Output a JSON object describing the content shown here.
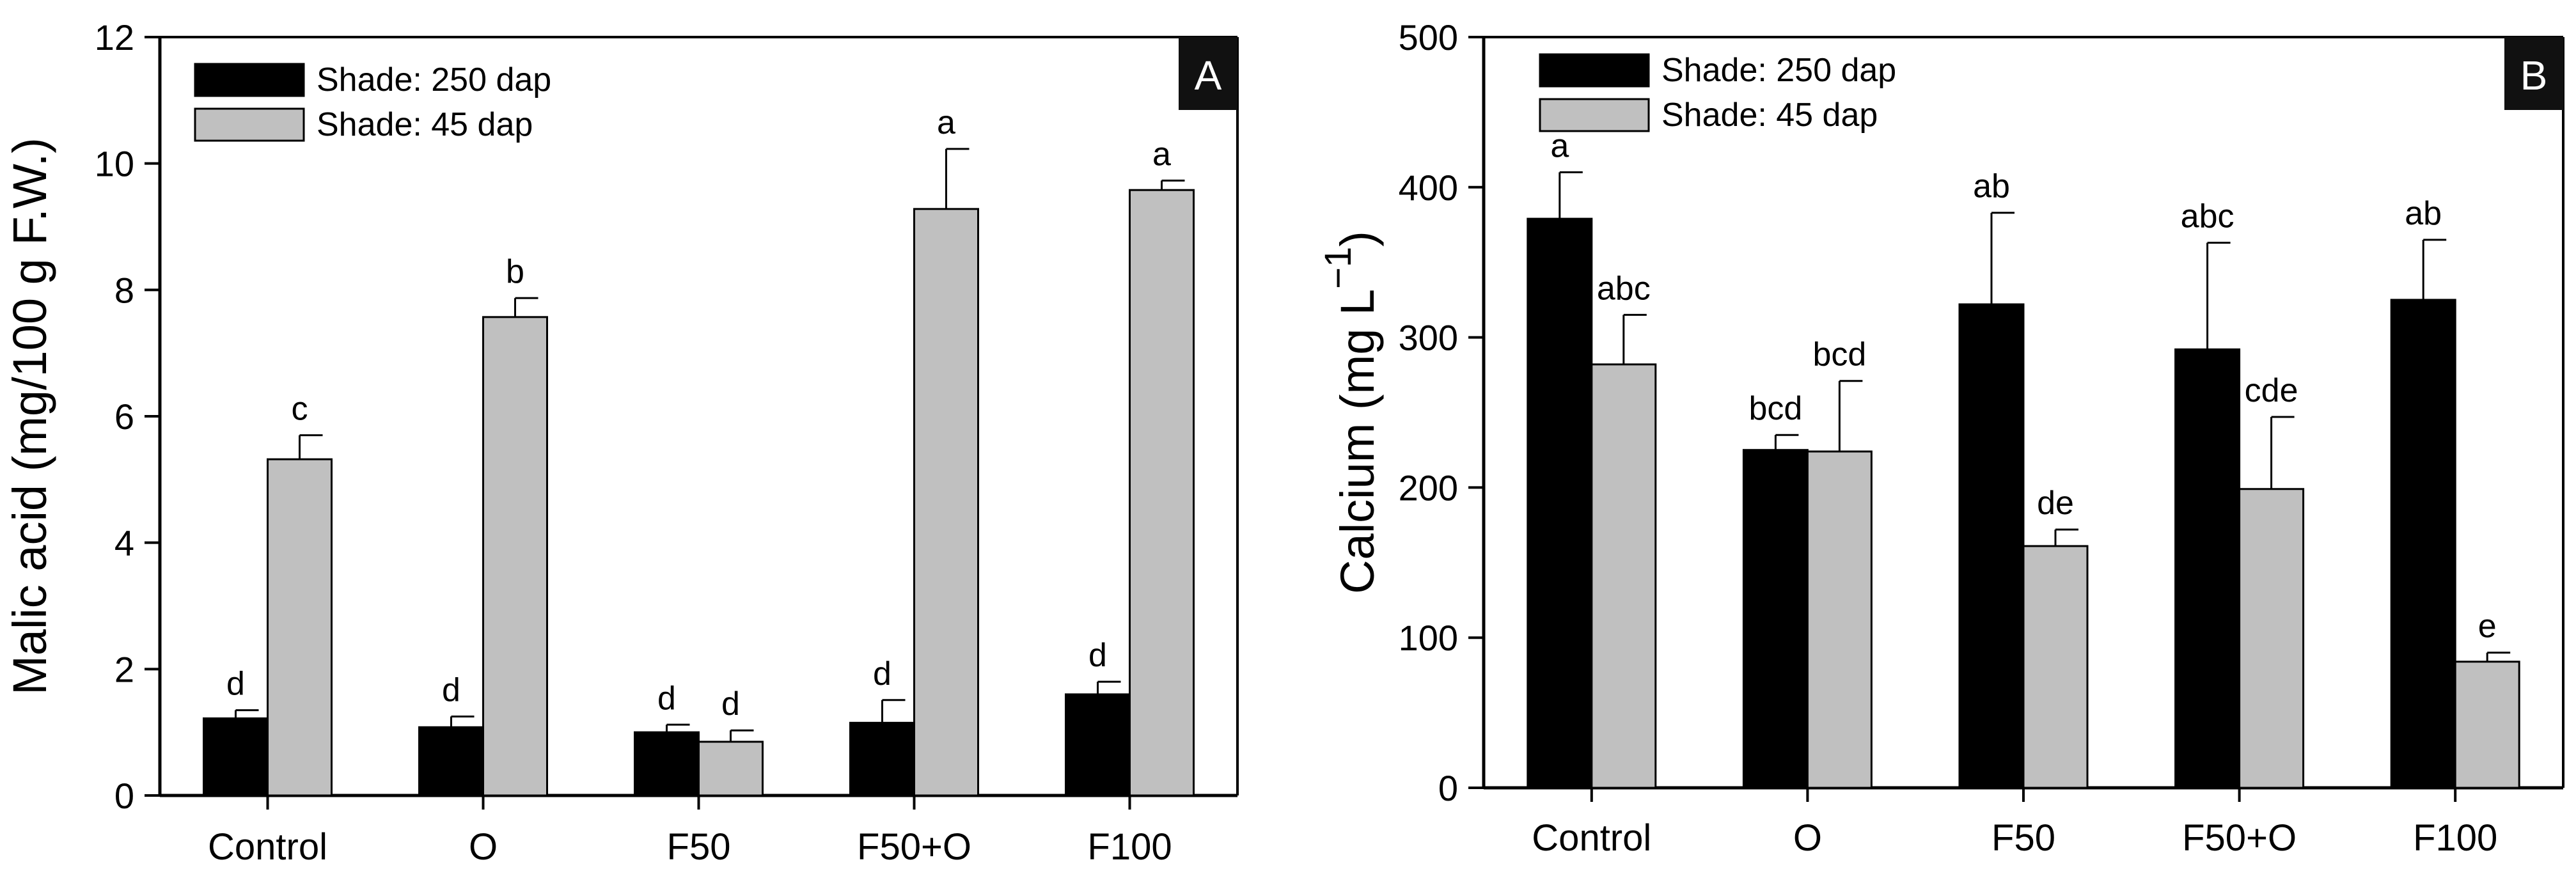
{
  "colors": {
    "series_250": "#000000",
    "series_45": "#c0c0c0",
    "axis": "#000000",
    "badge_bg": "#111111",
    "badge_text": "#ffffff"
  },
  "chart_data": [
    {
      "type": "bar",
      "panel_label": "A",
      "ylabel": "Malic acid (mg/100 g F.W.)",
      "xlabel": "",
      "ylim": [
        0,
        12
      ],
      "yticks": [
        "0",
        "2",
        "4",
        "6",
        "8",
        "10",
        "12"
      ],
      "categories": [
        "Control",
        "O",
        "F50",
        "F50+O",
        "F100"
      ],
      "legend_position": "top-left",
      "series": [
        {
          "name": "Shade: 250 dap",
          "color": "#000000",
          "values": [
            1.22,
            1.08,
            1.0,
            1.15,
            1.6
          ],
          "errors": [
            0.13,
            0.17,
            0.12,
            0.36,
            0.2
          ],
          "letters": [
            "d",
            "d",
            "d",
            "d",
            "d"
          ]
        },
        {
          "name": "Shade: 45 dap",
          "color": "#c0c0c0",
          "values": [
            5.32,
            7.57,
            0.85,
            9.28,
            9.58
          ],
          "errors": [
            0.38,
            0.3,
            0.18,
            0.95,
            0.15
          ],
          "letters": [
            "c",
            "b",
            "d",
            "a",
            "a"
          ]
        }
      ]
    },
    {
      "type": "bar",
      "panel_label": "B",
      "ylabel": "Calcium (mg L",
      "ylabel_sup": "−1",
      "ylabel_close": ")",
      "xlabel": "",
      "ylim": [
        0,
        500
      ],
      "yticks": [
        "0",
        "100",
        "200",
        "300",
        "400",
        "500"
      ],
      "categories": [
        "Control",
        "O",
        "F50",
        "F50+O",
        "F100"
      ],
      "legend_position": "top-left",
      "series": [
        {
          "name": "Shade: 250 dap",
          "color": "#000000",
          "values": [
            379,
            225,
            322,
            292,
            325
          ],
          "errors": [
            31,
            10,
            61,
            71,
            40
          ],
          "letters": [
            "a",
            "bcd",
            "ab",
            "abc",
            "ab"
          ]
        },
        {
          "name": "Shade: 45 dap",
          "color": "#c0c0c0",
          "values": [
            282,
            224,
            161,
            199,
            84
          ],
          "errors": [
            33,
            47,
            11,
            48,
            6
          ],
          "letters": [
            "abc",
            "bcd",
            "de",
            "cde",
            "e"
          ]
        }
      ]
    }
  ]
}
